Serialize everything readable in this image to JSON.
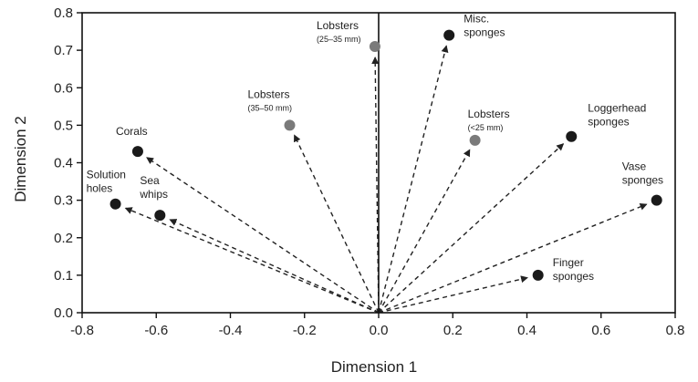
{
  "chart_data": {
    "type": "scatter",
    "title": "",
    "xlabel": "Dimension 1",
    "ylabel": "Dimension 2",
    "xlim": [
      -0.8,
      0.8
    ],
    "ylim": [
      0.0,
      0.8
    ],
    "xticks": [
      "-0.8",
      "-0.6",
      "-0.4",
      "-0.2",
      "0.0",
      "0.2",
      "0.4",
      "0.6",
      "0.8"
    ],
    "yticks": [
      "0.0",
      "0.1",
      "0.2",
      "0.3",
      "0.4",
      "0.5",
      "0.6",
      "0.7",
      "0.8"
    ],
    "grid": false,
    "legend": "none",
    "vector_origin": [
      0.0,
      0.0
    ],
    "colors": {
      "dark_point": "#1a1a1a",
      "gray_point": "#7a7a7a",
      "line": "#222222"
    },
    "points": [
      {
        "label": "Solution holes",
        "x": -0.71,
        "y": 0.29,
        "shade": "dark"
      },
      {
        "label": "Sea whips",
        "x": -0.59,
        "y": 0.26,
        "shade": "dark"
      },
      {
        "label": "Corals",
        "x": -0.65,
        "y": 0.43,
        "shade": "dark"
      },
      {
        "label": "Lobsters",
        "sublabel": "(35–50 mm)",
        "x": -0.24,
        "y": 0.5,
        "shade": "gray"
      },
      {
        "label": "Lobsters",
        "sublabel": "(25–35 mm)",
        "x": -0.01,
        "y": 0.71,
        "shade": "gray"
      },
      {
        "label": "Misc. sponges",
        "x": 0.19,
        "y": 0.74,
        "shade": "dark"
      },
      {
        "label": "Lobsters",
        "sublabel": "(<25 mm)",
        "x": 0.26,
        "y": 0.46,
        "shade": "gray"
      },
      {
        "label": "Loggerhead sponges",
        "x": 0.52,
        "y": 0.47,
        "shade": "dark"
      },
      {
        "label": "Vase sponges",
        "x": 0.75,
        "y": 0.3,
        "shade": "dark"
      },
      {
        "label": "Finger sponges",
        "x": 0.43,
        "y": 0.1,
        "shade": "dark"
      }
    ]
  }
}
